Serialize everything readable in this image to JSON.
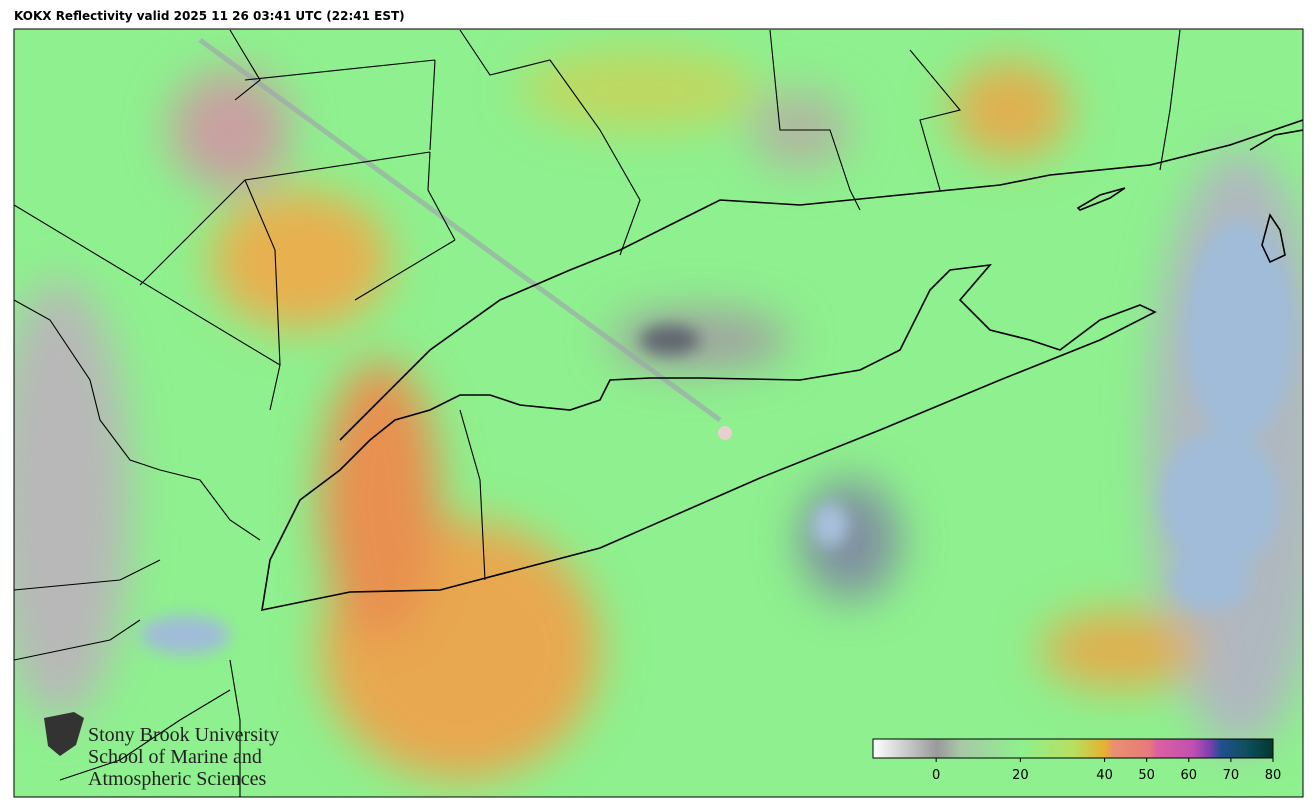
{
  "header": {
    "title": "KOKX Reflectivity valid 2025 11 26 03:41 UTC (22:41 EST)"
  },
  "colorbar": {
    "range": [
      -15,
      80
    ],
    "ticks": [
      0,
      20,
      40,
      50,
      60,
      70,
      80
    ]
  },
  "logo": {
    "lines": [
      "Stony Brook University",
      "School of Marine and",
      "Atmospheric Sciences"
    ]
  }
}
